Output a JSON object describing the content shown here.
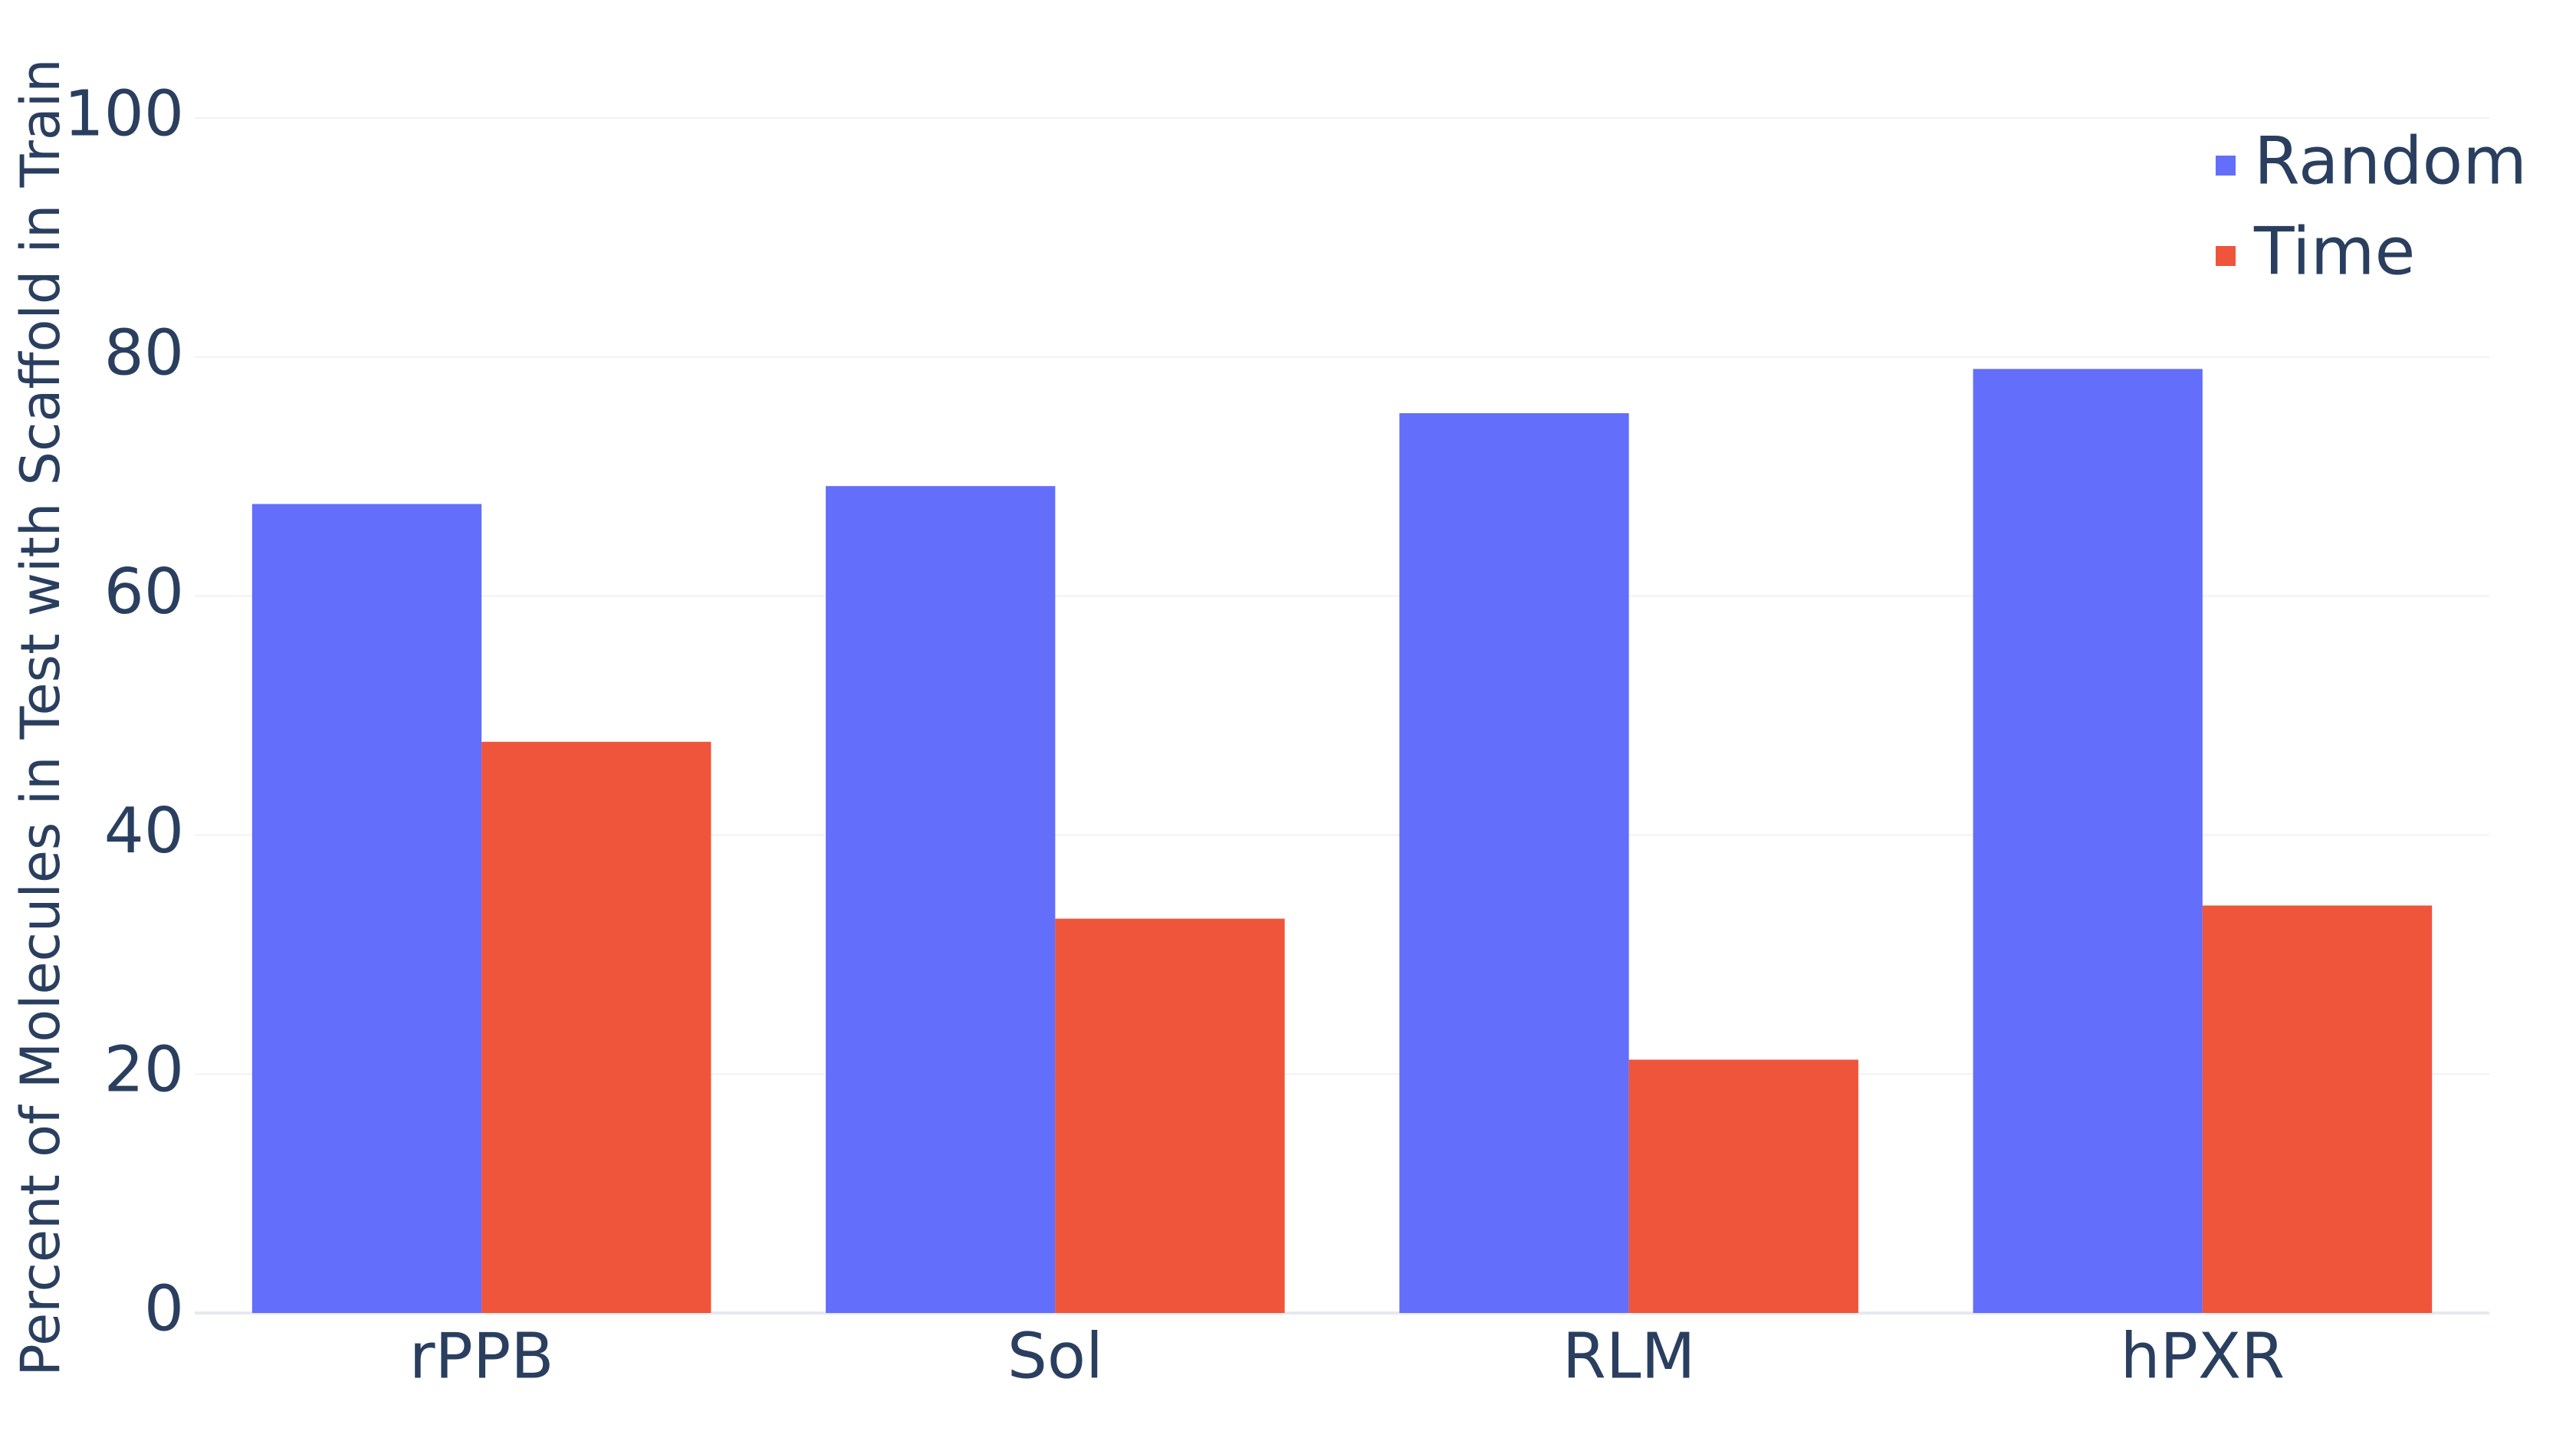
{
  "chart_data": {
    "type": "bar",
    "y_label": "Percent of Molecules in Test with Scaffold in Train",
    "categories": [
      "rPPB",
      "Sol",
      "RLM",
      "hPXR"
    ],
    "series": [
      {
        "name": "Random",
        "color": "#636efa",
        "values": [
          67.7,
          69.2,
          75.3,
          79.0
        ]
      },
      {
        "name": "Time",
        "color": "#ef553b",
        "values": [
          47.8,
          33.0,
          21.2,
          34.1
        ]
      }
    ],
    "ylim": [
      0,
      100
    ],
    "yticks": [
      0,
      20,
      40,
      60,
      80,
      100
    ],
    "grid": true,
    "legend": "top-right"
  }
}
